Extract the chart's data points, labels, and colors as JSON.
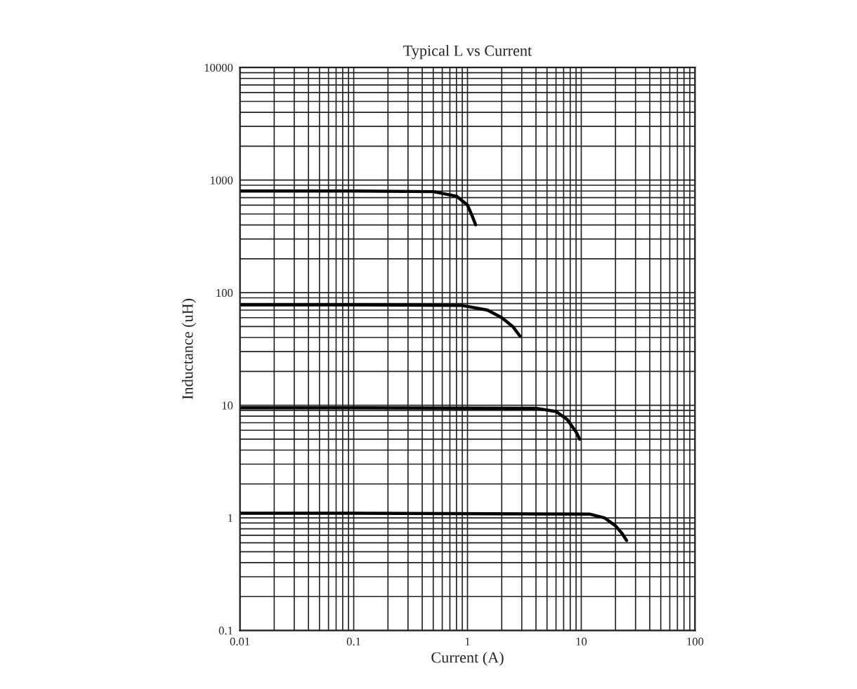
{
  "chart_data": {
    "type": "line",
    "title": "Typical L vs Current",
    "xlabel": "Current (A)",
    "ylabel": "Inductance (uH)",
    "log": "xy",
    "grid": true,
    "marker": "none",
    "line_style": "solid",
    "xlim": [
      0.01,
      100
    ],
    "xticks": [
      0.01,
      0.1,
      1,
      10,
      100
    ],
    "ylim": [
      0.1,
      10000
    ],
    "yticks": [
      0.1,
      1,
      10,
      100,
      1000,
      10000
    ],
    "series": [
      {
        "color": "#000000",
        "x": [
          0.01,
          0.1,
          0.5,
          0.8,
          1.0,
          1.1,
          1.18
        ],
        "values": [
          800,
          800,
          790,
          720,
          600,
          480,
          400
        ]
      },
      {
        "color": "#000000",
        "x": [
          0.01,
          0.1,
          0.9,
          1.5,
          2.0,
          2.5,
          2.9
        ],
        "values": [
          78,
          78,
          77,
          70,
          60,
          50,
          41
        ]
      },
      {
        "color": "#000000",
        "x": [
          0.01,
          0.1,
          4,
          6,
          7.5,
          9,
          9.7
        ],
        "values": [
          9.5,
          9.5,
          9.4,
          8.8,
          7.5,
          5.8,
          5.0
        ]
      },
      {
        "color": "#000000",
        "x": [
          0.01,
          0.1,
          11.8,
          16,
          20,
          23,
          25
        ],
        "values": [
          1.1,
          1.1,
          1.08,
          1.0,
          0.85,
          0.72,
          0.63
        ]
      }
    ]
  }
}
